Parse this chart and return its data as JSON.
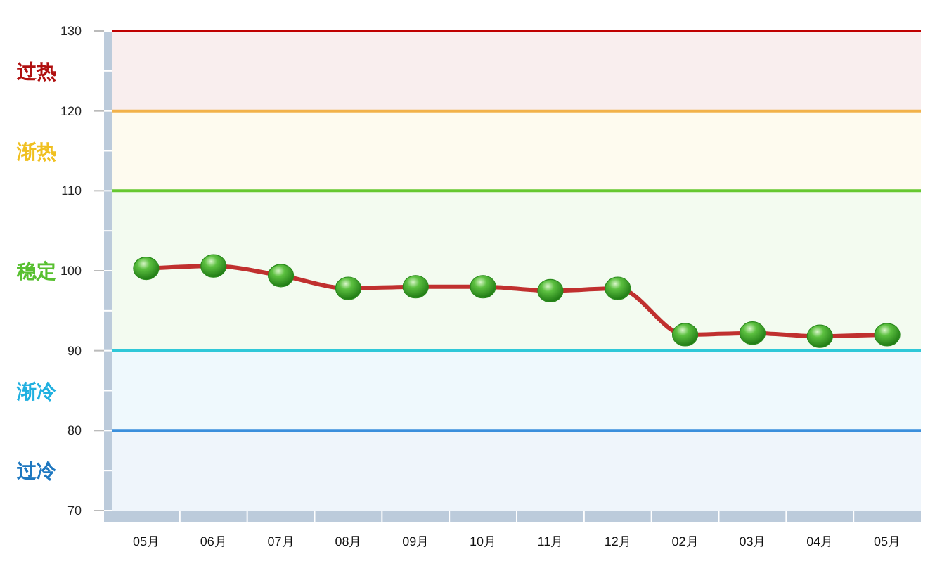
{
  "chart_data": {
    "type": "line",
    "categories": [
      "05月",
      "06月",
      "07月",
      "08月",
      "09月",
      "10月",
      "11月",
      "12月",
      "02月",
      "03月",
      "04月",
      "05月"
    ],
    "series": [
      {
        "color": "#c0302f",
        "values": [
          100.3,
          100.6,
          99.4,
          97.8,
          98,
          98,
          97.5,
          97.8,
          92,
          92.2,
          91.8,
          92
        ]
      }
    ],
    "marker": "circle",
    "line_style": "solid",
    "grid": false,
    "ylim": [
      70,
      130
    ],
    "yticks": [
      70,
      80,
      90,
      100,
      110,
      120,
      130
    ],
    "ref_lines": [
      {
        "axis": "y",
        "value": 130,
        "color": "#c00000"
      },
      {
        "axis": "y",
        "value": 120,
        "color": "#f2b24a"
      },
      {
        "axis": "y",
        "value": 110,
        "color": "#66c830"
      },
      {
        "axis": "y",
        "value": 90,
        "color": "#2fc8d8"
      },
      {
        "axis": "y",
        "value": 80,
        "color": "#3b8fdc"
      }
    ],
    "bands": [
      {
        "axis": "y",
        "from": 120,
        "to": 130,
        "label": "过热",
        "color": "#b01010"
      },
      {
        "axis": "y",
        "from": 110,
        "to": 120,
        "label": "渐热",
        "color": "#f0c020"
      },
      {
        "axis": "y",
        "from": 90,
        "to": 110,
        "label": "稳定",
        "color": "#58c030"
      },
      {
        "axis": "y",
        "from": 80,
        "to": 90,
        "label": "渐冷",
        "color": "#20b0e0"
      },
      {
        "axis": "y",
        "from": 70,
        "to": 80,
        "label": "过冷",
        "color": "#1f78c0"
      }
    ]
  }
}
